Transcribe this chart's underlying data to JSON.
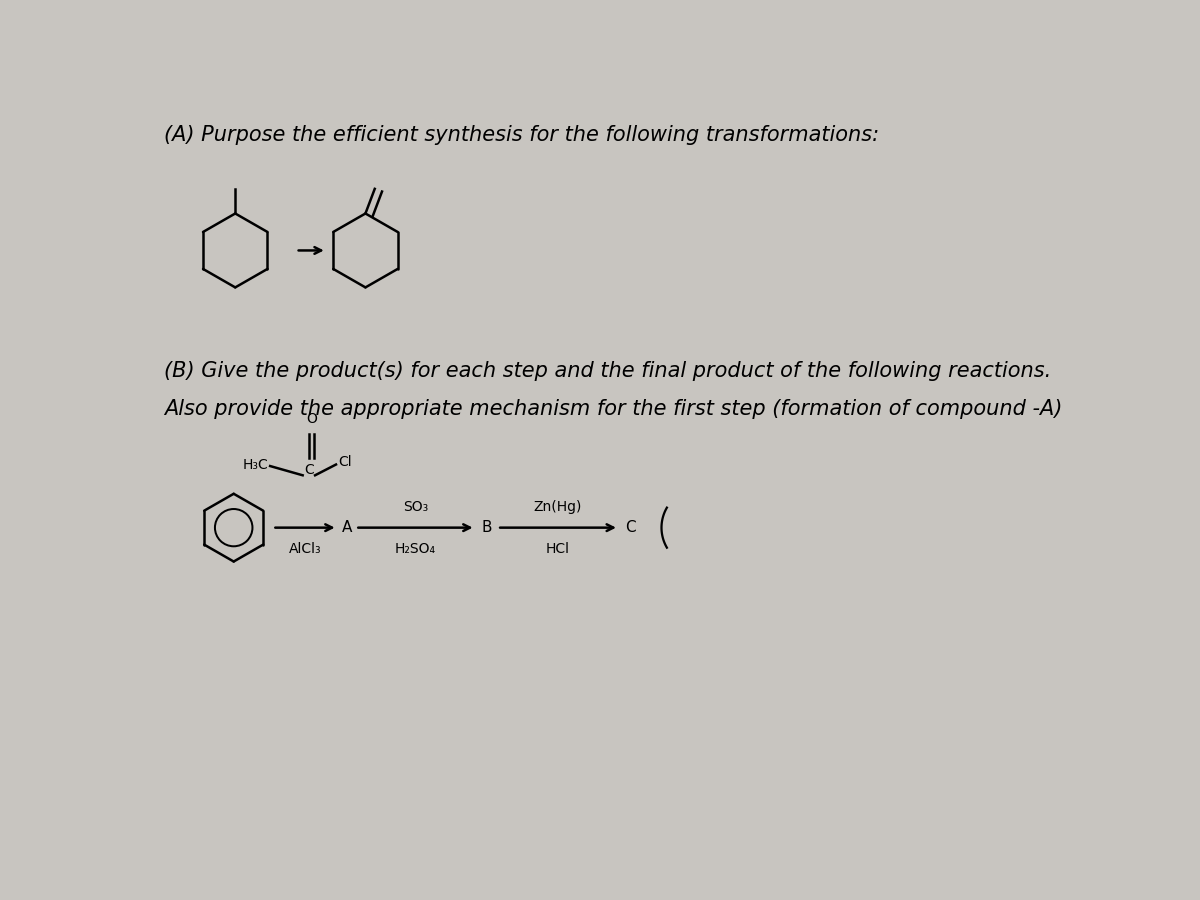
{
  "background_color": "#c8c5c0",
  "text_color": "#000000",
  "title_A": "(A) Purpose the efficient synthesis for the following transformations:",
  "title_B_line1": "(B) Give the product(s) for each step and the final product of the following reactions.",
  "title_B_line2": "Also provide the appropriate mechanism for the first step (formation of compound -A)",
  "label_A": "A",
  "label_B": "B",
  "label_C": "C",
  "reagent1_top": "SO₃",
  "reagent1_bot": "H₂SO₄",
  "reagent2_top": "Zn(Hg)",
  "reagent2_bot": "HCl",
  "label_AlCl3": "AlCl₃",
  "label_H3C": "H₃C",
  "label_Cl": "Cl",
  "label_O": "O",
  "font_size_title": 15,
  "font_size_label": 11,
  "font_size_reagent": 10,
  "font_size_mol": 10
}
